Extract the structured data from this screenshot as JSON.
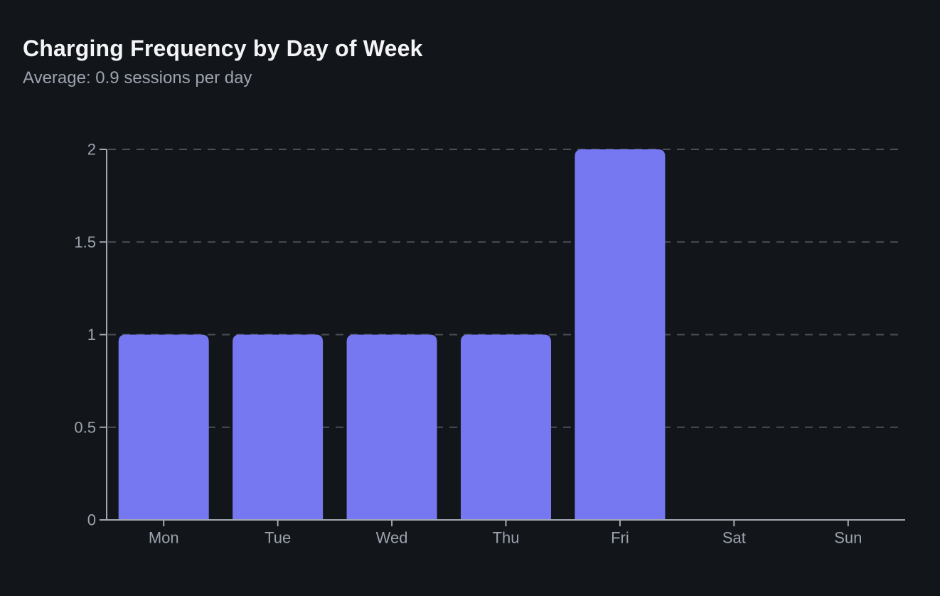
{
  "header": {
    "title": "Charging Frequency by Day of Week",
    "subtitle": "Average: 0.9 sessions per day"
  },
  "chart_data": {
    "type": "bar",
    "title": "Charging Frequency by Day of Week",
    "subtitle": "Average: 0.9 sessions per day",
    "categories": [
      "Mon",
      "Tue",
      "Wed",
      "Thu",
      "Fri",
      "Sat",
      "Sun"
    ],
    "values": [
      1,
      1,
      1,
      1,
      2,
      0,
      0
    ],
    "xlabel": "",
    "ylabel": "",
    "ylim": [
      0,
      2
    ],
    "yticks": [
      0,
      0.5,
      1,
      1.5,
      2
    ],
    "ytick_labels": [
      "0",
      "0.5",
      "1",
      "1.5",
      "2"
    ],
    "grid": "horizontal-dashed",
    "legend": "none",
    "colors": {
      "background": "#121519",
      "bar": "#7678f2",
      "axis": "#a3a9b2",
      "grid": "#4a4f57",
      "title": "#f3f4f6",
      "subtitle": "#9ca3af",
      "tick_label": "#9ca3af"
    }
  }
}
